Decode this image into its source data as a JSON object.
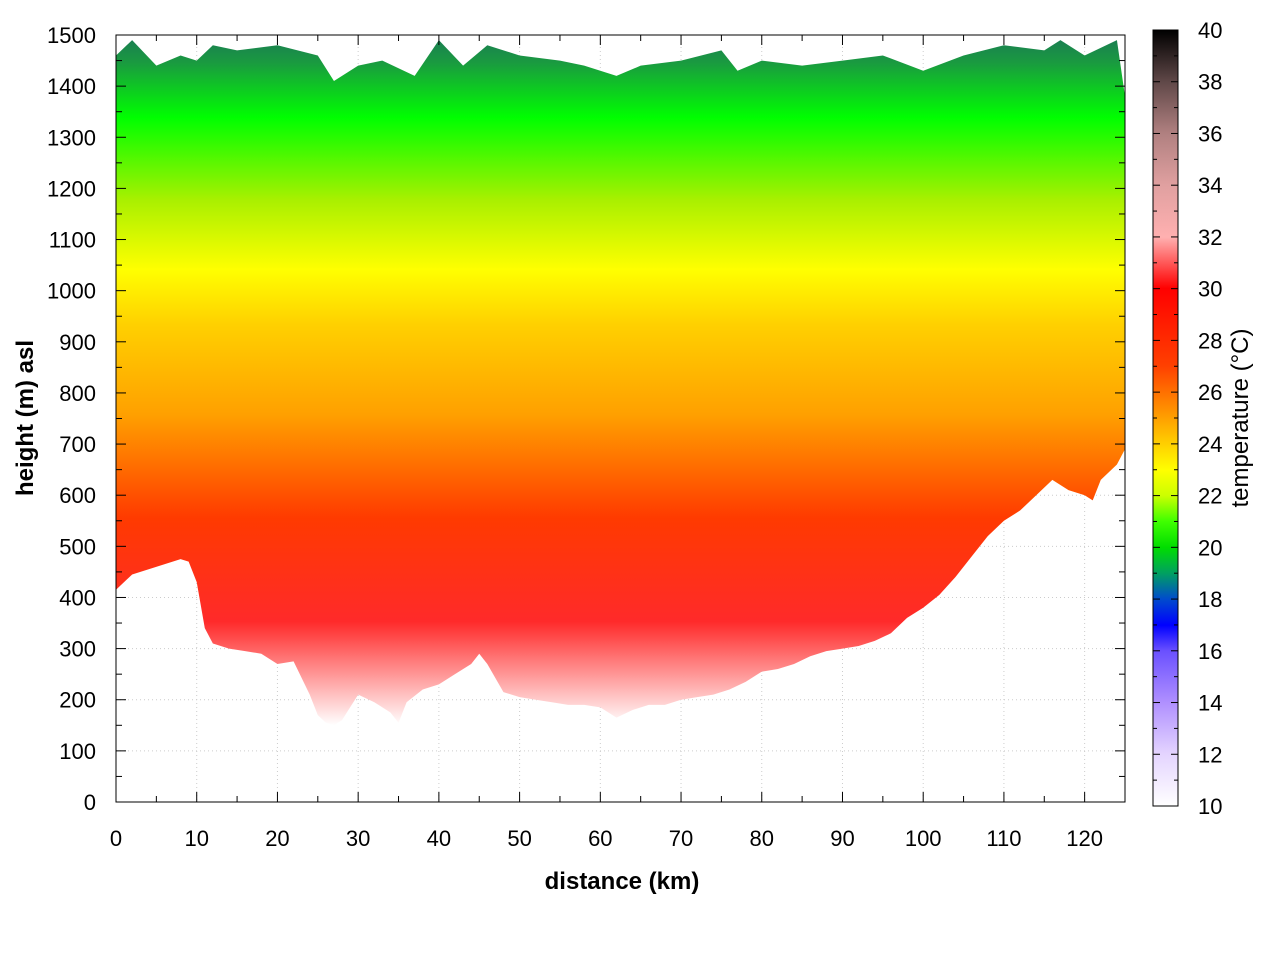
{
  "chart_data": {
    "type": "heatmap",
    "title": "",
    "xlabel": "distance (km)",
    "ylabel": "height (m) asl",
    "colorbar_label": "temperature (°C)",
    "xlim": [
      0,
      125
    ],
    "ylim": [
      0,
      1500
    ],
    "clim": [
      10,
      40
    ],
    "x_ticks": [
      0,
      10,
      20,
      30,
      40,
      50,
      60,
      70,
      80,
      90,
      100,
      110,
      120
    ],
    "x_tick_labels": [
      "0",
      "10",
      "20",
      "30",
      "40",
      "50",
      "60",
      "70",
      "80",
      "90",
      "100",
      "110",
      "120"
    ],
    "y_ticks": [
      0,
      100,
      200,
      300,
      400,
      500,
      600,
      700,
      800,
      900,
      1000,
      1100,
      1200,
      1300,
      1400,
      1500
    ],
    "y_tick_labels": [
      "0",
      "100",
      "200",
      "300",
      "400",
      "500",
      "600",
      "700",
      "800",
      "900",
      "1000",
      "1100",
      "1200",
      "1300",
      "1400",
      "1500"
    ],
    "colorbar_ticks": [
      10,
      12,
      14,
      16,
      18,
      20,
      22,
      24,
      26,
      28,
      30,
      32,
      34,
      36,
      38,
      40
    ],
    "colorbar_tick_labels": [
      "10",
      "12",
      "14",
      "16",
      "18",
      "20",
      "22",
      "24",
      "26",
      "28",
      "30",
      "32",
      "34",
      "36",
      "38",
      "40"
    ],
    "grid": true,
    "terrain_profile": {
      "distance_km": [
        0,
        2,
        4,
        6,
        8,
        9,
        10,
        11,
        12,
        14,
        16,
        18,
        20,
        22,
        24,
        25,
        26,
        27,
        28,
        30,
        32,
        34,
        35,
        36,
        38,
        40,
        42,
        44,
        45,
        46,
        48,
        50,
        52,
        54,
        56,
        58,
        60,
        62,
        64,
        66,
        68,
        70,
        72,
        74,
        76,
        78,
        80,
        82,
        84,
        86,
        88,
        90,
        92,
        94,
        96,
        98,
        100,
        102,
        104,
        106,
        108,
        110,
        112,
        114,
        116,
        118,
        120,
        121,
        122,
        124,
        125
      ],
      "height_m": [
        415,
        445,
        455,
        465,
        475,
        470,
        430,
        340,
        310,
        300,
        295,
        290,
        270,
        275,
        210,
        170,
        155,
        150,
        160,
        210,
        195,
        175,
        155,
        195,
        220,
        230,
        250,
        270,
        290,
        270,
        215,
        205,
        200,
        195,
        190,
        190,
        185,
        165,
        180,
        190,
        190,
        200,
        205,
        210,
        220,
        235,
        255,
        260,
        270,
        285,
        295,
        300,
        305,
        315,
        330,
        360,
        380,
        405,
        440,
        480,
        520,
        550,
        570,
        600,
        630,
        610,
        600,
        590,
        630,
        660,
        690
      ]
    },
    "field_summary": {
      "description_values_degC": [
        30,
        24,
        20,
        18
      ],
      "at_height_m": [
        350,
        800,
        1250,
        1450
      ]
    }
  }
}
